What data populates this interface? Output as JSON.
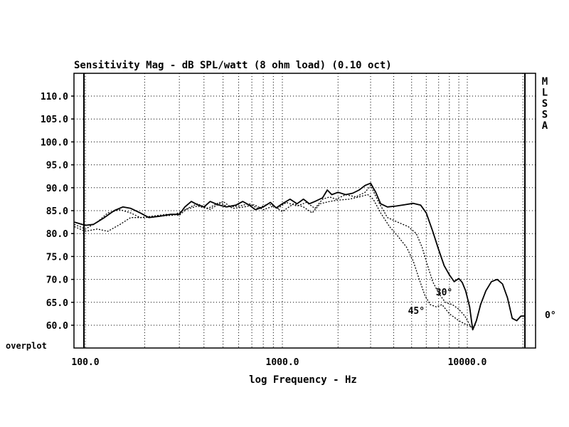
{
  "chart_data": {
    "type": "line",
    "title": "Sensitivity Mag - dB SPL/watt (8 ohm load) (0.10 oct)",
    "xlabel": "log Frequency - Hz",
    "ylabel": "",
    "x_scale": "log",
    "xlim": [
      85,
      21000
    ],
    "ylim": [
      59,
      114
    ],
    "grid": true,
    "x_tick_labels": [
      {
        "value": 100,
        "label": "100.0"
      },
      {
        "value": 1000,
        "label": "1000.0"
      },
      {
        "value": 10000,
        "label": "10000.0"
      }
    ],
    "y_tick_labels": [
      {
        "value": 110,
        "label": "110.0"
      },
      {
        "value": 105,
        "label": "105.0"
      },
      {
        "value": 100,
        "label": "100.0"
      },
      {
        "value": 95,
        "label": "95.0"
      },
      {
        "value": 90,
        "label": "90.0"
      },
      {
        "value": 85,
        "label": "85.0"
      },
      {
        "value": 80,
        "label": "80.0"
      },
      {
        "value": 75,
        "label": "75.0"
      },
      {
        "value": 70,
        "label": "70.0"
      },
      {
        "value": 65,
        "label": "65.0"
      },
      {
        "value": 60,
        "label": "60.0"
      }
    ],
    "bottom_label": "overplot",
    "side_label": [
      "M",
      "L",
      "S",
      "S",
      "A"
    ],
    "annotations": [
      {
        "text": "0°",
        "x": 21000,
        "y": 61.7
      },
      {
        "text": "30°",
        "x": 7500,
        "y": 66.5
      },
      {
        "text": "45°",
        "x": 5300,
        "y": 62.5
      }
    ],
    "series": [
      {
        "style": "solid",
        "annotation": "0°",
        "points": [
          [
            88,
            82.5
          ],
          [
            100,
            81.8
          ],
          [
            110,
            82.0
          ],
          [
            125,
            83.5
          ],
          [
            140,
            85.0
          ],
          [
            155,
            85.8
          ],
          [
            170,
            85.5
          ],
          [
            190,
            84.5
          ],
          [
            210,
            83.5
          ],
          [
            240,
            83.8
          ],
          [
            270,
            84.2
          ],
          [
            300,
            84.2
          ],
          [
            320,
            85.8
          ],
          [
            345,
            87.0
          ],
          [
            370,
            86.3
          ],
          [
            400,
            85.8
          ],
          [
            430,
            87.0
          ],
          [
            470,
            86.3
          ],
          [
            520,
            85.8
          ],
          [
            580,
            86.2
          ],
          [
            630,
            87.0
          ],
          [
            680,
            86.2
          ],
          [
            730,
            85.2
          ],
          [
            800,
            85.8
          ],
          [
            870,
            86.8
          ],
          [
            930,
            85.6
          ],
          [
            1000,
            86.5
          ],
          [
            1100,
            87.5
          ],
          [
            1200,
            86.5
          ],
          [
            1300,
            87.5
          ],
          [
            1400,
            86.5
          ],
          [
            1500,
            87.0
          ],
          [
            1650,
            87.8
          ],
          [
            1750,
            89.5
          ],
          [
            1850,
            88.5
          ],
          [
            2000,
            89.0
          ],
          [
            2200,
            88.5
          ],
          [
            2400,
            88.8
          ],
          [
            2600,
            89.5
          ],
          [
            2800,
            90.5
          ],
          [
            3000,
            91.0
          ],
          [
            3200,
            89.0
          ],
          [
            3400,
            86.5
          ],
          [
            3700,
            85.8
          ],
          [
            4100,
            86.0
          ],
          [
            4600,
            86.3
          ],
          [
            5100,
            86.6
          ],
          [
            5600,
            86.2
          ],
          [
            6000,
            84.5
          ],
          [
            6500,
            80.5
          ],
          [
            7000,
            76.5
          ],
          [
            7500,
            73.0
          ],
          [
            8000,
            71.0
          ],
          [
            8500,
            69.5
          ],
          [
            9000,
            70.2
          ],
          [
            9400,
            69.3
          ],
          [
            9800,
            67.5
          ],
          [
            10300,
            64.0
          ],
          [
            10700,
            59.0
          ],
          [
            11200,
            61.0
          ],
          [
            11800,
            64.5
          ],
          [
            12600,
            67.5
          ],
          [
            13500,
            69.5
          ],
          [
            14500,
            70.0
          ],
          [
            15500,
            69.0
          ],
          [
            16500,
            66.0
          ],
          [
            17500,
            61.5
          ],
          [
            18500,
            61.0
          ],
          [
            19500,
            62.0
          ],
          [
            21000,
            62.0
          ]
        ]
      },
      {
        "style": "dotted",
        "annotation": "30°",
        "points": [
          [
            88,
            82.0
          ],
          [
            100,
            81.0
          ],
          [
            115,
            82.5
          ],
          [
            130,
            84.5
          ],
          [
            150,
            85.2
          ],
          [
            170,
            84.5
          ],
          [
            190,
            83.5
          ],
          [
            220,
            83.8
          ],
          [
            260,
            84.2
          ],
          [
            300,
            84.0
          ],
          [
            330,
            85.5
          ],
          [
            370,
            86.5
          ],
          [
            420,
            85.5
          ],
          [
            480,
            86.8
          ],
          [
            530,
            85.8
          ],
          [
            600,
            86.0
          ],
          [
            680,
            86.5
          ],
          [
            750,
            85.5
          ],
          [
            850,
            86.5
          ],
          [
            950,
            85.5
          ],
          [
            1050,
            86.8
          ],
          [
            1200,
            86.0
          ],
          [
            1350,
            86.8
          ],
          [
            1500,
            85.5
          ],
          [
            1650,
            87.5
          ],
          [
            1800,
            88.0
          ],
          [
            1950,
            87.5
          ],
          [
            2200,
            88.5
          ],
          [
            2500,
            88.0
          ],
          [
            2800,
            89.0
          ],
          [
            3000,
            90.5
          ],
          [
            3300,
            87.0
          ],
          [
            3700,
            83.5
          ],
          [
            4200,
            82.5
          ],
          [
            4800,
            81.5
          ],
          [
            5300,
            80.0
          ],
          [
            5700,
            77.0
          ],
          [
            6100,
            73.0
          ],
          [
            6500,
            69.5
          ],
          [
            7000,
            67.0
          ],
          [
            7600,
            65.0
          ],
          [
            8300,
            64.5
          ],
          [
            9000,
            63.5
          ],
          [
            9700,
            62.0
          ],
          [
            10500,
            59.5
          ]
        ]
      },
      {
        "style": "dotted",
        "annotation": "45°",
        "points": [
          [
            88,
            81.5
          ],
          [
            100,
            80.5
          ],
          [
            115,
            81.0
          ],
          [
            130,
            80.5
          ],
          [
            150,
            82.0
          ],
          [
            170,
            83.5
          ],
          [
            200,
            83.5
          ],
          [
            240,
            83.8
          ],
          [
            280,
            84.0
          ],
          [
            320,
            85.2
          ],
          [
            370,
            86.0
          ],
          [
            430,
            85.3
          ],
          [
            500,
            87.0
          ],
          [
            560,
            85.5
          ],
          [
            640,
            85.8
          ],
          [
            720,
            86.3
          ],
          [
            800,
            85.2
          ],
          [
            900,
            86.0
          ],
          [
            1000,
            84.8
          ],
          [
            1150,
            86.5
          ],
          [
            1300,
            85.8
          ],
          [
            1450,
            84.5
          ],
          [
            1600,
            86.5
          ],
          [
            1800,
            87.0
          ],
          [
            2000,
            87.3
          ],
          [
            2300,
            87.5
          ],
          [
            2600,
            88.0
          ],
          [
            2900,
            88.5
          ],
          [
            3100,
            87.5
          ],
          [
            3400,
            84.5
          ],
          [
            3800,
            81.5
          ],
          [
            4200,
            79.5
          ],
          [
            4700,
            77.0
          ],
          [
            5100,
            74.0
          ],
          [
            5500,
            70.0
          ],
          [
            5900,
            66.5
          ],
          [
            6300,
            64.5
          ],
          [
            6800,
            64.0
          ],
          [
            7300,
            64.5
          ],
          [
            8000,
            62.5
          ],
          [
            9000,
            61.0
          ],
          [
            10000,
            60.0
          ],
          [
            11000,
            59.5
          ]
        ]
      }
    ]
  }
}
